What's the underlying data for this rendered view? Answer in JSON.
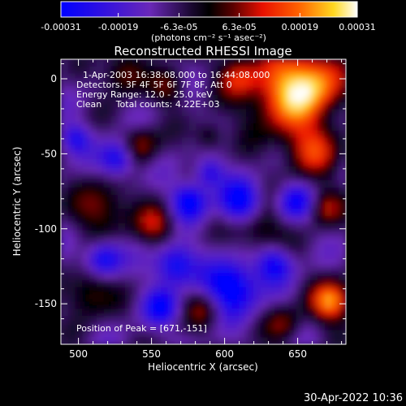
{
  "colorbar": {
    "ticks": [
      "-0.00031",
      "-0.00019",
      "-6.3e-05",
      "6.3e-05",
      "0.00019",
      "0.00031"
    ],
    "tick_values": [
      -0.00031,
      -0.00019,
      -6.3e-05,
      6.3e-05,
      0.00019,
      0.00031
    ],
    "range": [
      -0.00031,
      0.00031
    ],
    "label": "(photons cm⁻² s⁻¹ asec⁻²)",
    "colormap": "rainbow (blue-purple-black-red-orange-yellow-white)"
  },
  "chart_data": {
    "type": "heatmap",
    "title": "Reconstructed RHESSI Image",
    "xlabel": "Heliocentric X (arcsec)",
    "ylabel": "Heliocentric Y (arcsec)",
    "xlim": [
      488,
      683
    ],
    "ylim": [
      -177,
      13
    ],
    "xticks": [
      500,
      550,
      600,
      650
    ],
    "yticks": [
      0,
      -50,
      -100,
      -150
    ],
    "peak": {
      "x": 671,
      "y": -151
    },
    "annotations": [
      "1-Apr-2003 16:38:08.000 to 16:44:08.000",
      "Detectors: 3F 4F 5F 6F 7F 8F, Att 0",
      "Energy Range: 12.0 - 25.0 keV",
      "Clean     Total counts: 4.22E+03",
      "Position of Peak = [671,-151]"
    ]
  },
  "footer": {
    "timestamp": "30-Apr-2022 10:36"
  }
}
